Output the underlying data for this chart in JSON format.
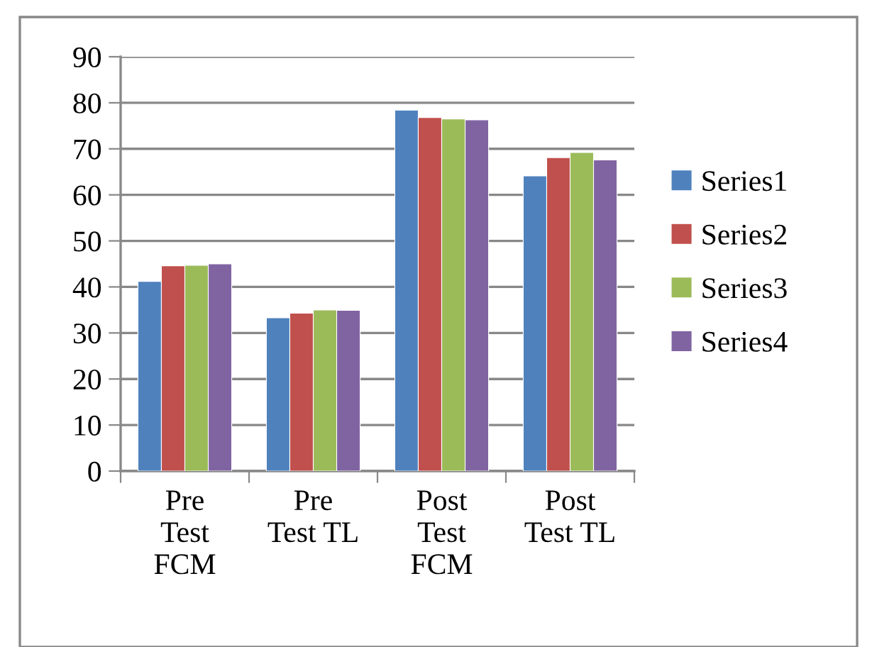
{
  "chart_data": {
    "type": "bar",
    "categories": [
      "Pre\nTest\nFCM",
      "Pre\nTest TL",
      "Post\nTest\nFCM",
      "Post\nTest TL"
    ],
    "series": [
      {
        "name": "Series1",
        "color": "#4f81bd",
        "values": [
          41.2,
          33.3,
          78.4,
          64.1
        ]
      },
      {
        "name": "Series2",
        "color": "#c0504d",
        "values": [
          44.6,
          34.3,
          76.8,
          68.1
        ]
      },
      {
        "name": "Series3",
        "color": "#9bbb59",
        "values": [
          44.7,
          35.0,
          76.5,
          69.2
        ]
      },
      {
        "name": "Series4",
        "color": "#8064a2",
        "values": [
          45.0,
          34.9,
          76.3,
          67.6
        ]
      }
    ],
    "ylim": [
      0,
      90
    ],
    "yticks": [
      0,
      10,
      20,
      30,
      40,
      50,
      60,
      70,
      80,
      90
    ],
    "grid": "y",
    "legend": "right"
  }
}
